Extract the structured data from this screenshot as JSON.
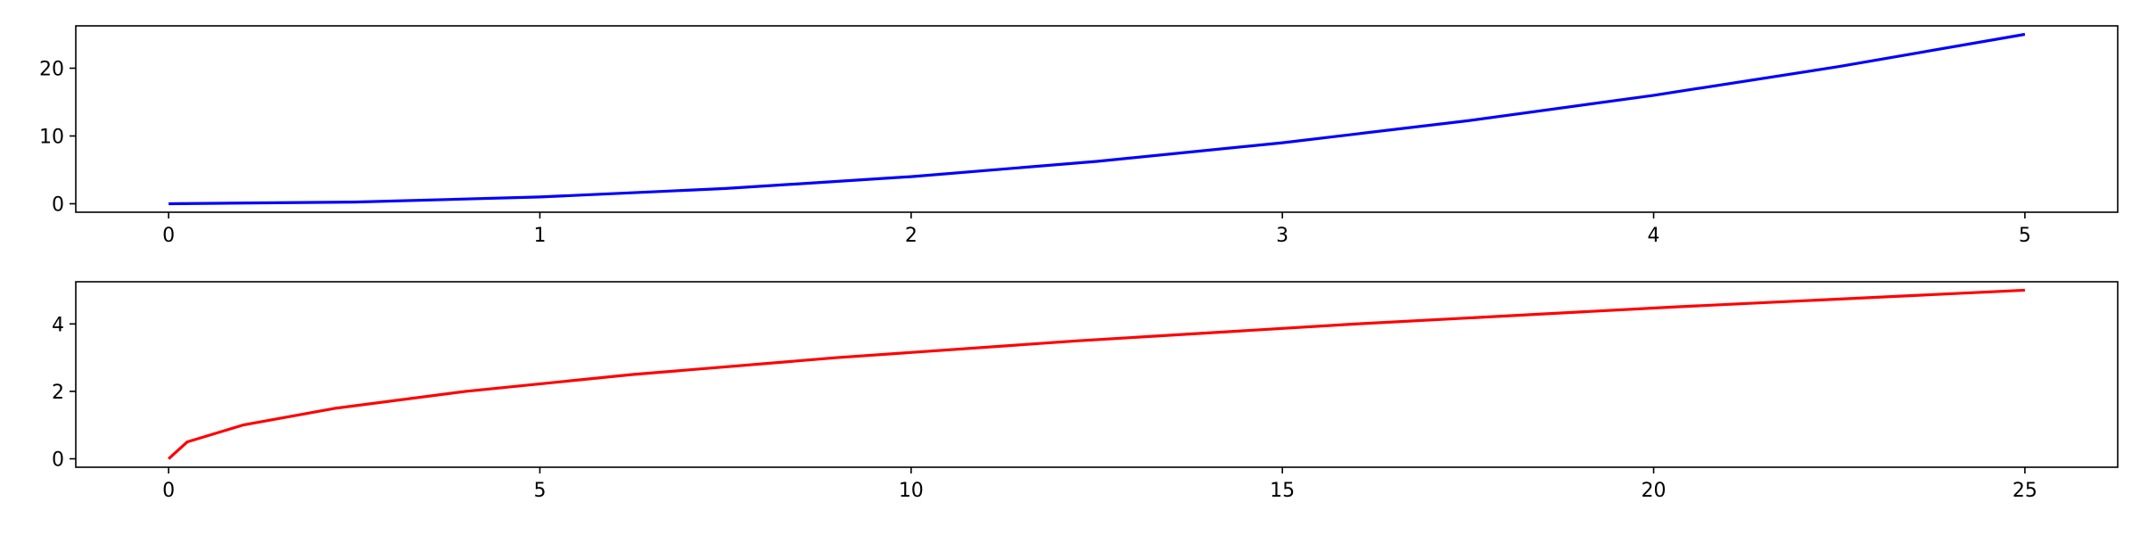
{
  "chart_data": [
    {
      "type": "line",
      "title": "",
      "xlabel": "",
      "ylabel": "",
      "xlim": [
        -0.25,
        5.25
      ],
      "ylim": [
        -1.25,
        26.25
      ],
      "xticks": [
        0,
        1,
        2,
        3,
        4,
        5
      ],
      "yticks": [
        0,
        10,
        20
      ],
      "grid": false,
      "series": [
        {
          "color": "#0000ff",
          "x": [
            0,
            0.5,
            1,
            1.5,
            2,
            2.5,
            3,
            3.5,
            4,
            4.5,
            5
          ],
          "y": [
            0,
            0.25,
            1,
            2.25,
            4,
            6.25,
            9,
            12.25,
            16,
            20.25,
            25
          ]
        }
      ]
    },
    {
      "type": "line",
      "title": "",
      "xlabel": "",
      "ylabel": "",
      "xlim": [
        -1.25,
        26.25
      ],
      "ylim": [
        -0.25,
        5.25
      ],
      "xticks": [
        0,
        5,
        10,
        15,
        20,
        25
      ],
      "yticks": [
        0,
        2,
        4
      ],
      "grid": false,
      "series": [
        {
          "color": "#ff0000",
          "x": [
            0,
            0.25,
            1,
            2.25,
            4,
            6.25,
            9,
            12.25,
            16,
            20.25,
            25
          ],
          "y": [
            0,
            0.5,
            1,
            1.5,
            2,
            2.5,
            3,
            3.5,
            4,
            4.5,
            5
          ]
        }
      ]
    }
  ]
}
